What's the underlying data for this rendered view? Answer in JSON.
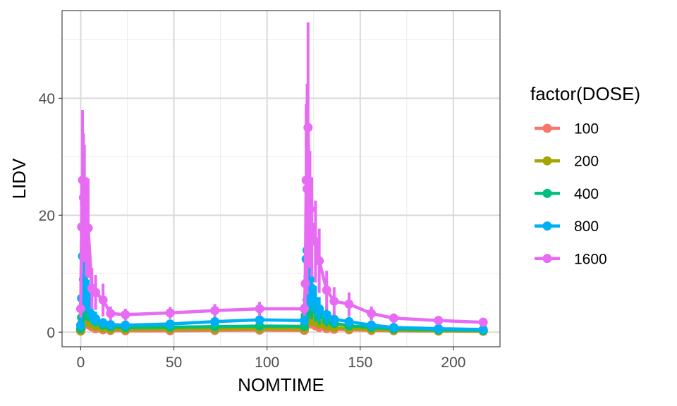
{
  "chart_data": {
    "type": "line",
    "xlabel": "NOMTIME",
    "ylabel": "LIDV",
    "xlim": [
      -10,
      225
    ],
    "ylim": [
      -2.5,
      55
    ],
    "x_ticks": [
      0,
      50,
      100,
      150,
      200
    ],
    "y_ticks": [
      0,
      20,
      40
    ],
    "grid": true,
    "legend": {
      "title": "factor(DOSE)",
      "placement": "right"
    },
    "x": [
      0,
      0.5,
      1,
      1.5,
      2,
      3,
      4,
      6,
      8,
      12,
      16,
      24,
      48,
      72,
      96,
      120,
      120.5,
      121,
      121.5,
      122,
      123,
      124,
      126,
      128,
      132,
      136,
      144,
      156,
      168,
      192,
      216
    ],
    "series": [
      {
        "name": "100",
        "color": "#F8766D",
        "values": [
          0.2,
          0.8,
          1.2,
          1.6,
          1.7,
          1.6,
          1.3,
          0.9,
          0.6,
          0.4,
          0.3,
          0.25,
          0.25,
          0.3,
          0.35,
          0.3,
          0.9,
          1.3,
          1.7,
          2.0,
          1.8,
          1.5,
          1.1,
          0.8,
          0.6,
          0.5,
          0.4,
          0.3,
          0.25,
          0.2,
          0.15
        ],
        "err": [
          0.1,
          0.5,
          0.8,
          1.0,
          1.1,
          1.0,
          0.8,
          0.5,
          0.3,
          0.2,
          0.15,
          0.1,
          0.1,
          0.15,
          0.2,
          0.15,
          0.5,
          0.8,
          1.0,
          1.2,
          1.0,
          0.9,
          0.6,
          0.4,
          0.3,
          0.25,
          0.2,
          0.15,
          0.1,
          0.1,
          0.1
        ]
      },
      {
        "name": "200",
        "color": "#A3A500",
        "values": [
          0.3,
          1.2,
          1.8,
          2.4,
          2.6,
          2.4,
          2.0,
          1.4,
          1.0,
          0.7,
          0.5,
          0.45,
          0.5,
          0.55,
          0.6,
          0.55,
          1.5,
          2.2,
          2.8,
          3.2,
          3.0,
          2.5,
          1.9,
          1.4,
          1.0,
          0.8,
          0.6,
          0.45,
          0.35,
          0.25,
          0.2
        ],
        "err": [
          0.15,
          0.8,
          1.2,
          1.5,
          1.6,
          1.4,
          1.2,
          0.8,
          0.5,
          0.35,
          0.25,
          0.2,
          0.2,
          0.25,
          0.3,
          0.25,
          0.9,
          1.3,
          1.6,
          1.8,
          1.6,
          1.4,
          1.0,
          0.7,
          0.5,
          0.4,
          0.3,
          0.2,
          0.15,
          0.12,
          0.1
        ]
      },
      {
        "name": "400",
        "color": "#00BF7D",
        "values": [
          0.6,
          2.5,
          3.8,
          4.8,
          5.2,
          4.8,
          4.0,
          2.8,
          1.9,
          1.2,
          0.9,
          0.8,
          0.85,
          0.95,
          1.05,
          1.0,
          2.8,
          4.2,
          5.5,
          6.8,
          6.0,
          5.0,
          3.8,
          2.8,
          2.0,
          1.5,
          1.1,
          0.8,
          0.55,
          0.4,
          0.3
        ],
        "err": [
          0.3,
          1.5,
          2.2,
          2.8,
          3.0,
          2.7,
          2.2,
          1.5,
          1.0,
          0.6,
          0.45,
          0.4,
          0.4,
          0.45,
          0.5,
          0.45,
          1.6,
          2.4,
          3.0,
          3.6,
          3.2,
          2.8,
          2.0,
          1.5,
          1.0,
          0.8,
          0.55,
          0.4,
          0.3,
          0.2,
          0.15
        ]
      },
      {
        "name": "800",
        "color": "#00B0F6",
        "values": [
          1.2,
          5.8,
          13.0,
          9.0,
          8.2,
          7.5,
          6.0,
          3.0,
          2.3,
          1.6,
          1.3,
          1.2,
          1.4,
          1.8,
          2.1,
          2.0,
          4.2,
          12.5,
          14.0,
          9.5,
          9.0,
          7.5,
          5.3,
          4.0,
          3.0,
          2.2,
          1.8,
          1.2,
          0.8,
          0.6,
          0.45
        ],
        "err": [
          0.6,
          3.0,
          6.0,
          4.5,
          4.2,
          3.8,
          3.0,
          1.6,
          1.2,
          0.8,
          0.6,
          0.5,
          0.6,
          0.8,
          0.9,
          0.9,
          2.2,
          6.0,
          6.5,
          4.8,
          4.5,
          3.8,
          2.6,
          2.0,
          1.5,
          1.1,
          0.9,
          0.6,
          0.4,
          0.3,
          0.2
        ]
      },
      {
        "name": "1600",
        "color": "#E76BF3",
        "values": [
          4.0,
          18.0,
          26.0,
          23.0,
          22.0,
          18.0,
          17.8,
          7.5,
          6.8,
          5.5,
          3.2,
          3.0,
          3.3,
          3.7,
          4.0,
          4.0,
          8.3,
          26.0,
          24.5,
          35.0,
          21.0,
          18.0,
          15.5,
          12.2,
          7.2,
          5.3,
          4.8,
          3.2,
          2.4,
          2.0,
          1.7
        ],
        "err": [
          1.5,
          8.0,
          12.0,
          11.0,
          10.0,
          8.5,
          8.5,
          3.5,
          3.0,
          2.8,
          1.2,
          1.0,
          1.0,
          1.1,
          1.2,
          1.2,
          4.0,
          13.0,
          18.0,
          18.0,
          10.0,
          8.5,
          7.0,
          5.5,
          3.3,
          2.4,
          2.0,
          1.2,
          0.8,
          0.6,
          0.5
        ]
      }
    ]
  }
}
